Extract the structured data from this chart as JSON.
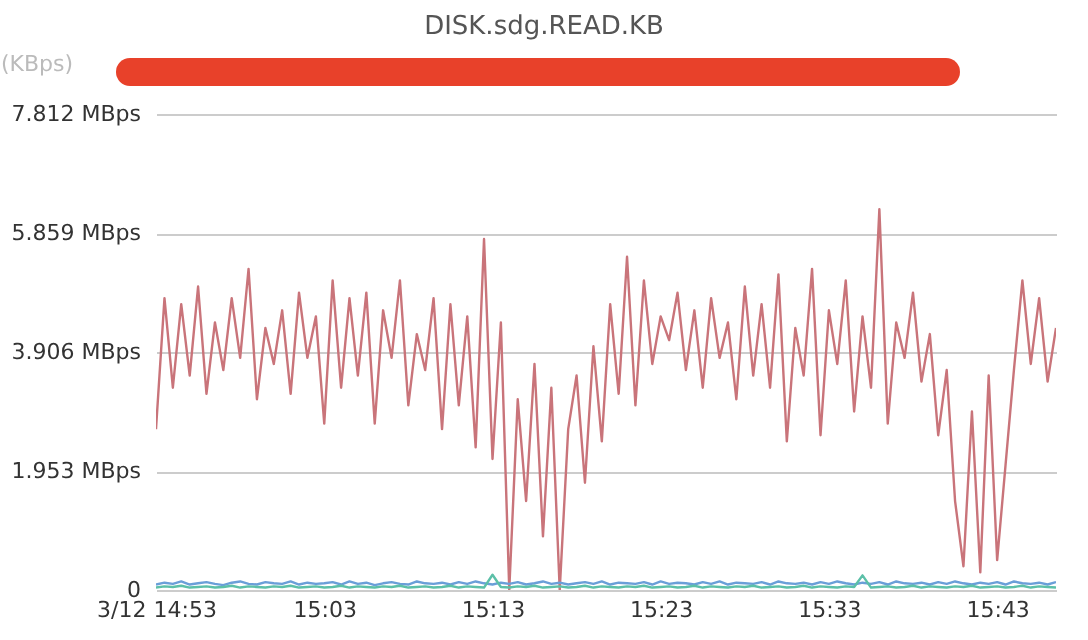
{
  "chart_data": {
    "type": "line",
    "title": "DISK.sdg.READ.KB",
    "ylabel": "(KBps)",
    "x": [
      14.8833,
      14.8917,
      14.9,
      14.9083,
      14.9167,
      14.925,
      14.9333,
      14.9417,
      14.95,
      14.9583,
      14.9667,
      14.975,
      14.9833,
      14.9917,
      15.0,
      15.0083,
      15.0167,
      15.025,
      15.0333,
      15.0417,
      15.05,
      15.0583,
      15.0667,
      15.075,
      15.0833,
      15.0917,
      15.1,
      15.1083,
      15.1167,
      15.125,
      15.1333,
      15.1417,
      15.15,
      15.1583,
      15.1667,
      15.175,
      15.1833,
      15.1917,
      15.2,
      15.2083,
      15.2167,
      15.225,
      15.2333,
      15.2417,
      15.25,
      15.2583,
      15.2667,
      15.275,
      15.2833,
      15.2917,
      15.3,
      15.3083,
      15.3167,
      15.325,
      15.3333,
      15.3417,
      15.35,
      15.3583,
      15.3667,
      15.375,
      15.3833,
      15.3917,
      15.4,
      15.4083,
      15.4167,
      15.425,
      15.4333,
      15.4417,
      15.45,
      15.4583,
      15.4667,
      15.475,
      15.4833,
      15.4917,
      15.5,
      15.5083,
      15.5167,
      15.525,
      15.5333,
      15.5417,
      15.55,
      15.5583,
      15.5667,
      15.575,
      15.5833,
      15.5917,
      15.6,
      15.6083,
      15.6167,
      15.625,
      15.6333,
      15.6417,
      15.65,
      15.6583,
      15.6667,
      15.675,
      15.6833,
      15.6917,
      15.7,
      15.7083,
      15.7167,
      15.725,
      15.7333,
      15.7417,
      15.75,
      15.7583,
      15.7667,
      15.775
    ],
    "series": [
      {
        "color": "#c9747a",
        "values": [
          2.64,
          4.79,
          3.32,
          4.69,
          3.52,
          4.98,
          3.22,
          4.39,
          3.61,
          4.79,
          3.81,
          5.27,
          3.13,
          4.3,
          3.71,
          4.59,
          3.22,
          4.88,
          3.81,
          4.49,
          2.73,
          5.08,
          3.32,
          4.79,
          3.52,
          4.88,
          2.73,
          4.59,
          3.81,
          5.08,
          3.03,
          4.2,
          3.61,
          4.79,
          2.64,
          4.69,
          3.03,
          4.49,
          2.34,
          5.76,
          2.15,
          4.39,
          0,
          3.13,
          1.46,
          3.71,
          0.88,
          3.32,
          0,
          2.64,
          3.52,
          1.76,
          4.0,
          2.44,
          4.69,
          3.22,
          5.47,
          3.03,
          5.08,
          3.71,
          4.49,
          4.1,
          4.88,
          3.61,
          4.59,
          3.32,
          4.79,
          3.81,
          4.39,
          3.13,
          4.98,
          3.52,
          4.69,
          3.32,
          5.18,
          2.44,
          4.3,
          3.52,
          5.27,
          2.54,
          4.59,
          3.71,
          5.08,
          2.93,
          4.49,
          3.32,
          6.25,
          2.73,
          4.39,
          3.81,
          4.88,
          3.42,
          4.2,
          2.54,
          3.61,
          1.46,
          0.39,
          2.93,
          0.29,
          3.52,
          0.49,
          2.05,
          3.61,
          5.08,
          3.71,
          4.79,
          3.42,
          4.3
        ]
      },
      {
        "color": "#6a9fd8",
        "values": [
          0.09,
          0.12,
          0.1,
          0.14,
          0.09,
          0.11,
          0.13,
          0.1,
          0.08,
          0.12,
          0.14,
          0.1,
          0.09,
          0.13,
          0.11,
          0.1,
          0.14,
          0.09,
          0.12,
          0.1,
          0.11,
          0.13,
          0.09,
          0.14,
          0.1,
          0.12,
          0.08,
          0.11,
          0.13,
          0.1,
          0.09,
          0.14,
          0.11,
          0.1,
          0.12,
          0.09,
          0.13,
          0.1,
          0.14,
          0.11,
          0.09,
          0.12,
          0.1,
          0.13,
          0.09,
          0.11,
          0.14,
          0.1,
          0.12,
          0.09,
          0.11,
          0.13,
          0.1,
          0.14,
          0.09,
          0.12,
          0.11,
          0.1,
          0.13,
          0.09,
          0.14,
          0.1,
          0.12,
          0.11,
          0.09,
          0.13,
          0.1,
          0.14,
          0.09,
          0.12,
          0.11,
          0.1,
          0.13,
          0.09,
          0.14,
          0.11,
          0.1,
          0.12,
          0.09,
          0.13,
          0.1,
          0.14,
          0.11,
          0.09,
          0.12,
          0.1,
          0.13,
          0.09,
          0.14,
          0.11,
          0.1,
          0.12,
          0.09,
          0.13,
          0.1,
          0.14,
          0.11,
          0.09,
          0.12,
          0.1,
          0.13,
          0.09,
          0.14,
          0.11,
          0.1,
          0.12,
          0.09,
          0.13
        ]
      },
      {
        "color": "#5cc0a8",
        "values": [
          0.04,
          0.06,
          0.05,
          0.07,
          0.04,
          0.05,
          0.06,
          0.04,
          0.05,
          0.07,
          0.04,
          0.06,
          0.05,
          0.04,
          0.06,
          0.05,
          0.07,
          0.04,
          0.05,
          0.06,
          0.04,
          0.05,
          0.07,
          0.04,
          0.06,
          0.05,
          0.04,
          0.06,
          0.05,
          0.07,
          0.04,
          0.05,
          0.06,
          0.04,
          0.05,
          0.07,
          0.04,
          0.06,
          0.05,
          0.04,
          0.25,
          0.05,
          0.04,
          0.06,
          0.05,
          0.07,
          0.04,
          0.05,
          0.06,
          0.04,
          0.05,
          0.07,
          0.04,
          0.06,
          0.05,
          0.04,
          0.06,
          0.05,
          0.07,
          0.04,
          0.05,
          0.06,
          0.04,
          0.05,
          0.07,
          0.04,
          0.06,
          0.05,
          0.04,
          0.06,
          0.05,
          0.07,
          0.04,
          0.05,
          0.06,
          0.04,
          0.05,
          0.07,
          0.04,
          0.06,
          0.05,
          0.04,
          0.06,
          0.05,
          0.24,
          0.04,
          0.05,
          0.06,
          0.04,
          0.05,
          0.07,
          0.04,
          0.06,
          0.05,
          0.04,
          0.06,
          0.05,
          0.07,
          0.04,
          0.05,
          0.06,
          0.04,
          0.05,
          0.07,
          0.04,
          0.06,
          0.05,
          0.04
        ]
      }
    ],
    "xlim": [
      14.8833,
      15.775
    ],
    "xticks": [
      {
        "value": 14.8833,
        "label": "3/12 14:53"
      },
      {
        "value": 15.05,
        "label": "15:03"
      },
      {
        "value": 15.2167,
        "label": "15:13"
      },
      {
        "value": 15.3833,
        "label": "15:23"
      },
      {
        "value": 15.55,
        "label": "15:33"
      },
      {
        "value": 15.7167,
        "label": "15:43"
      }
    ],
    "ylim": [
      0,
      7.812
    ],
    "yticks": [
      0,
      {
        "value": 1.953,
        "label": "1.953 MBps"
      },
      {
        "value": 3.906,
        "label": "3.906 MBps"
      },
      {
        "value": 5.859,
        "label": "5.859 MBps"
      },
      {
        "value": 7.812,
        "label": "7.812 MBps"
      }
    ],
    "grid": "y"
  }
}
